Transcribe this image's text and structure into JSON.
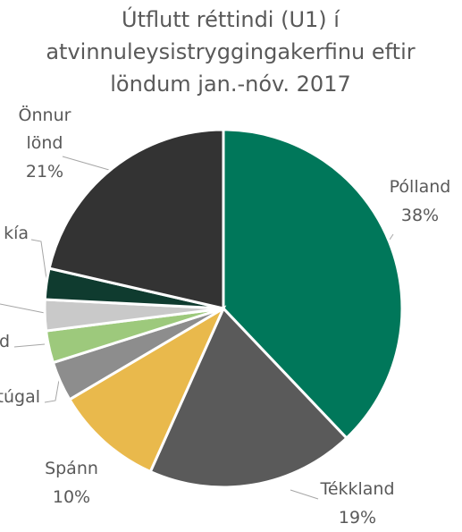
{
  "chart_data": {
    "type": "pie",
    "title": [
      "Útflutt réttindi (U1) í",
      "atvinnuleysistryggingakerfinu eftir",
      "löndum jan.-nóv. 2017"
    ],
    "categories": [
      "Pólland",
      "Tékkland",
      "Spánn",
      "túgal",
      "d",
      null,
      "kía",
      "Önnur lönd"
    ],
    "values": [
      37.9,
      18.8,
      9.8,
      3.6,
      2.9,
      2.8,
      2.8,
      21.4
    ],
    "value_labels": [
      "38%",
      "19%",
      "10%",
      null,
      null,
      null,
      null,
      "21%"
    ],
    "colors": [
      "#00775a",
      "#5a5a5a",
      "#e9b94c",
      "#8d8d8d",
      "#9dc97c",
      "#c9c9c9",
      "#0f3b2f",
      "#333333"
    ]
  }
}
